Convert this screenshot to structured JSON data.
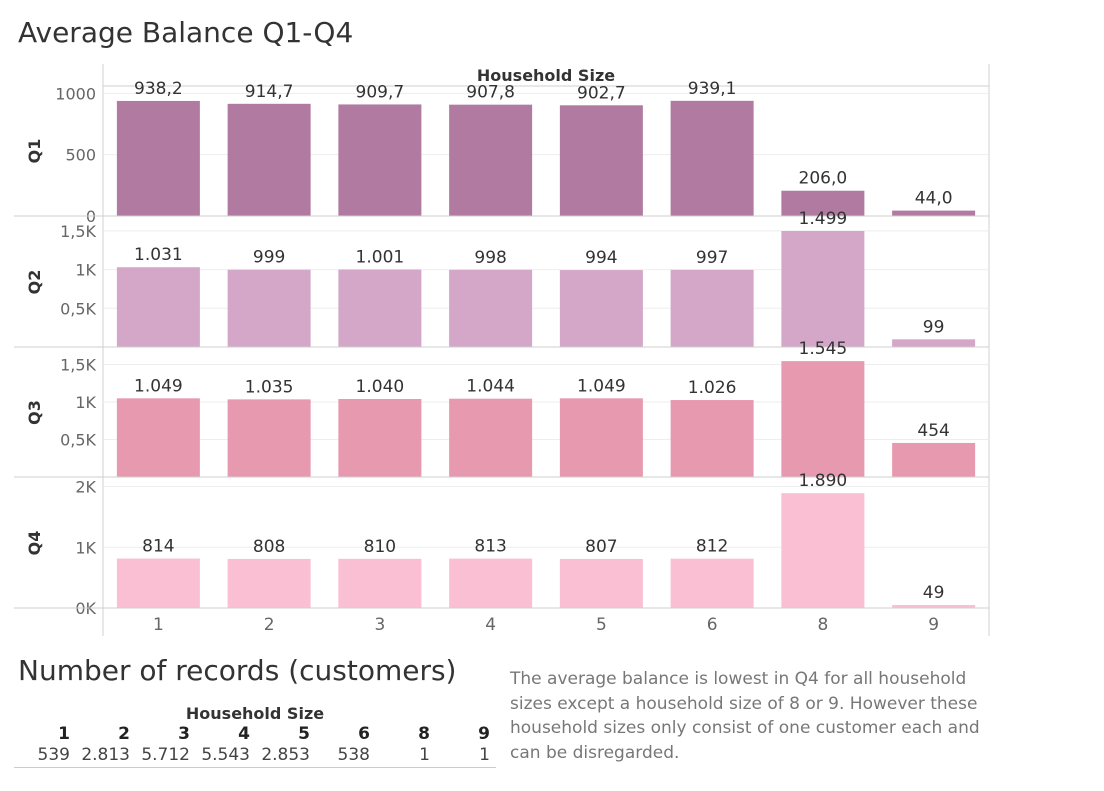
{
  "title": "Average Balance Q1-Q4",
  "chart_data": {
    "type": "bar",
    "column_header": "Household Size",
    "categories": [
      "1",
      "2",
      "3",
      "4",
      "5",
      "6",
      "8",
      "9"
    ],
    "panels": [
      {
        "name": "Q1",
        "color": "#b07aa1",
        "values": [
          938.2,
          914.7,
          909.7,
          907.8,
          902.7,
          939.1,
          206.0,
          44.0
        ],
        "labels": [
          "938,2",
          "914,7",
          "909,7",
          "907,8",
          "902,7",
          "939,1",
          "206,0",
          "44,0"
        ],
        "ylim": [
          0,
          1060
        ],
        "ticks": [
          0,
          500,
          1000
        ],
        "tick_labels": [
          "0",
          "500",
          "1000"
        ]
      },
      {
        "name": "Q2",
        "color": "#d4a6c8",
        "values": [
          1031,
          999,
          1001,
          998,
          994,
          997,
          1499,
          99
        ],
        "labels": [
          "1.031",
          "999",
          "1.001",
          "998",
          "994",
          "997",
          "1.499",
          "99"
        ],
        "ylim": [
          0,
          1680
        ],
        "ticks": [
          500,
          1000,
          1500
        ],
        "tick_labels": [
          "0,5K",
          "1K",
          "1,5K"
        ]
      },
      {
        "name": "Q3",
        "color": "#e799b0",
        "values": [
          1049,
          1035,
          1040,
          1044,
          1049,
          1026,
          1545,
          454
        ],
        "labels": [
          "1.049",
          "1.035",
          "1.040",
          "1.044",
          "1.049",
          "1.026",
          "1.545",
          "454"
        ],
        "ylim": [
          0,
          1720
        ],
        "ticks": [
          500,
          1000,
          1500
        ],
        "tick_labels": [
          "0,5K",
          "1K",
          "1,5K"
        ]
      },
      {
        "name": "Q4",
        "color": "#fabfd2",
        "values": [
          814,
          808,
          810,
          813,
          807,
          812,
          1890,
          49
        ],
        "labels": [
          "814",
          "808",
          "810",
          "813",
          "807",
          "812",
          "1.890",
          "49"
        ],
        "ylim": [
          0,
          2140
        ],
        "ticks": [
          0,
          1000,
          2000
        ],
        "tick_labels": [
          "0K",
          "1K",
          "2K"
        ]
      }
    ]
  },
  "records": {
    "title": "Number of records (customers)",
    "header": "Household Size",
    "sizes": [
      "1",
      "2",
      "3",
      "4",
      "5",
      "6",
      "8",
      "9"
    ],
    "counts": [
      "539",
      "2.813",
      "5.712",
      "5.543",
      "2.853",
      "538",
      "1",
      "1"
    ]
  },
  "note": "The average balance is lowest in Q4 for all household sizes except a household size of 8 or 9. However these household sizes only consist of one customer each and can be disregarded."
}
